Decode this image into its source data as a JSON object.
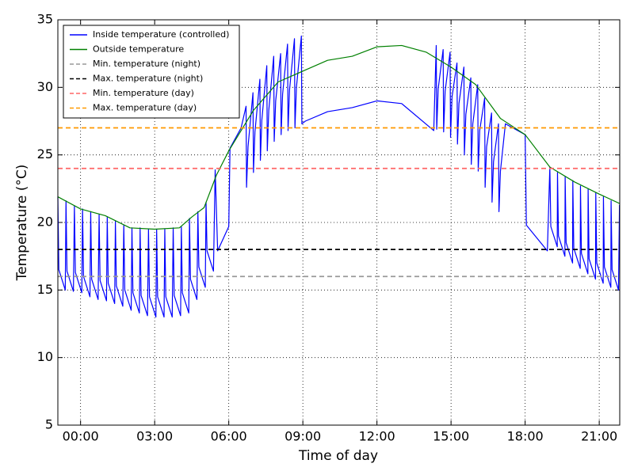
{
  "chart_data": {
    "type": "line",
    "xlabel": "Time of day",
    "ylabel": "Temperature (°C)",
    "xlim": [
      -0.92,
      21.83
    ],
    "ylim": [
      5,
      35
    ],
    "xticks": [
      {
        "value": 0,
        "label": "00:00"
      },
      {
        "value": 3,
        "label": "03:00"
      },
      {
        "value": 6,
        "label": "06:00"
      },
      {
        "value": 9,
        "label": "09:00"
      },
      {
        "value": 12,
        "label": "12:00"
      },
      {
        "value": 15,
        "label": "15:00"
      },
      {
        "value": 18,
        "label": "18:00"
      },
      {
        "value": 21,
        "label": "21:00"
      }
    ],
    "yticks": [
      5,
      10,
      15,
      20,
      25,
      30,
      35
    ],
    "grid": true,
    "legend": "upper left",
    "series": [
      {
        "name": "Inside temperature (controlled)",
        "color": "#0000ff",
        "linestyle": "solid",
        "x": [
          -0.92,
          -0.88,
          -0.62,
          -0.59,
          -0.55,
          -0.29,
          -0.25,
          -0.21,
          0.05,
          0.08,
          0.12,
          0.38,
          0.41,
          0.45,
          0.71,
          0.75,
          0.79,
          1.05,
          1.08,
          1.12,
          1.38,
          1.41,
          1.45,
          1.71,
          1.75,
          1.79,
          2.05,
          2.08,
          2.12,
          2.38,
          2.41,
          2.45,
          2.71,
          2.75,
          2.79,
          3.05,
          3.08,
          3.12,
          3.38,
          3.41,
          3.45,
          3.71,
          3.75,
          3.79,
          4.05,
          4.08,
          4.12,
          4.38,
          4.41,
          4.45,
          4.71,
          4.75,
          4.79,
          5.05,
          5.08,
          5.12,
          5.38,
          5.45,
          5.55,
          6.0,
          6.05,
          6.5,
          6.7,
          6.72,
          6.78,
          6.98,
          7.0,
          7.06,
          7.26,
          7.28,
          7.34,
          7.54,
          7.56,
          7.62,
          7.82,
          7.84,
          7.9,
          8.1,
          8.12,
          8.18,
          8.38,
          8.4,
          8.46,
          8.66,
          8.68,
          8.74,
          8.94,
          8.96,
          9.1,
          10,
          11,
          12,
          13,
          14.3,
          14.4,
          14.42,
          14.48,
          14.68,
          14.7,
          14.76,
          14.96,
          14.98,
          15.04,
          15.24,
          15.26,
          15.32,
          15.52,
          15.54,
          15.6,
          15.8,
          15.82,
          15.88,
          16.08,
          16.1,
          16.16,
          16.36,
          16.38,
          16.44,
          16.64,
          16.66,
          16.72,
          16.92,
          16.94,
          17.0,
          17.2,
          18.0,
          18.05,
          18.9,
          19.0,
          19.04,
          19.3,
          19.31,
          19.35,
          19.61,
          19.62,
          19.66,
          19.92,
          19.93,
          19.97,
          20.23,
          20.24,
          20.28,
          20.54,
          20.55,
          20.59,
          20.85,
          20.86,
          20.9,
          21.16,
          21.17,
          21.21,
          21.47,
          21.48,
          21.52,
          21.78,
          21.82
        ],
        "values": [
          21.9,
          16.5,
          15.0,
          21.6,
          16.4,
          14.9,
          21.2,
          16.3,
          14.8,
          21.0,
          16.0,
          14.5,
          20.8,
          15.8,
          14.3,
          20.6,
          15.7,
          14.2,
          20.4,
          15.5,
          14.0,
          20.1,
          15.3,
          13.8,
          19.8,
          15.0,
          13.5,
          19.6,
          14.8,
          13.3,
          19.6,
          14.6,
          13.1,
          19.5,
          14.5,
          13.0,
          19.5,
          14.5,
          13.0,
          19.5,
          14.5,
          13.0,
          19.6,
          14.6,
          13.1,
          19.7,
          14.8,
          13.3,
          20.3,
          15.8,
          14.3,
          20.8,
          16.7,
          15.2,
          21.5,
          17.9,
          16.4,
          23.9,
          17.9,
          19.7,
          25.5,
          27.0,
          28.6,
          22.6,
          25.6,
          29.6,
          23.7,
          26.7,
          30.6,
          24.6,
          27.6,
          31.6,
          25.3,
          28.3,
          32.3,
          26.0,
          29.0,
          32.5,
          26.5,
          29.5,
          33.2,
          26.8,
          29.8,
          33.6,
          27.0,
          30.0,
          33.8,
          27.3,
          27.5,
          28.2,
          28.5,
          29.0,
          28.8,
          26.8,
          33.1,
          26.9,
          29.9,
          32.8,
          26.7,
          29.7,
          32.6,
          26.3,
          29.3,
          31.8,
          25.8,
          28.8,
          31.5,
          25.0,
          28.0,
          30.7,
          24.3,
          27.3,
          30.2,
          23.8,
          26.8,
          29.2,
          22.6,
          25.6,
          28.1,
          21.5,
          24.5,
          27.3,
          20.8,
          23.8,
          27.3,
          26.5,
          19.8,
          17.9,
          24.1,
          19.7,
          18.2,
          23.7,
          19.0,
          17.5,
          23.4,
          18.5,
          17.0,
          23.1,
          18.1,
          16.6,
          22.7,
          17.7,
          16.2,
          22.5,
          17.3,
          15.8,
          22.2,
          17.0,
          15.5,
          21.9,
          16.7,
          15.2,
          21.6,
          16.5,
          15.0,
          21.3
        ]
      },
      {
        "name": "Outside temperature",
        "color": "#008000",
        "linestyle": "solid",
        "x": [
          -0.92,
          0,
          1,
          2,
          3,
          4,
          4.5,
          5,
          5.5,
          6,
          7,
          8,
          9,
          10,
          11,
          12,
          13,
          14,
          15,
          16,
          17,
          18,
          19,
          20,
          21,
          21.83
        ],
        "values": [
          21.9,
          21.0,
          20.5,
          19.6,
          19.5,
          19.6,
          20.4,
          21.1,
          23.5,
          25.3,
          28.3,
          30.4,
          31.2,
          32.0,
          32.3,
          33.0,
          33.1,
          32.6,
          31.5,
          30.2,
          27.7,
          26.5,
          24.1,
          23.0,
          22.1,
          21.4
        ]
      },
      {
        "name": "Min. temperature (night)",
        "color": "#999999",
        "linestyle": "dashed",
        "x": [
          -0.92,
          21.83
        ],
        "values": [
          16,
          16
        ]
      },
      {
        "name": "Max. temperature (night)",
        "color": "#000000",
        "linestyle": "dashed",
        "x": [
          -0.92,
          21.83
        ],
        "values": [
          18,
          18
        ]
      },
      {
        "name": "Min. temperature (day)",
        "color": "#ff6666",
        "linestyle": "dashed",
        "x": [
          -0.92,
          21.83
        ],
        "values": [
          24,
          24
        ]
      },
      {
        "name": "Max. temperature (day)",
        "color": "#ff9900",
        "linestyle": "dashed",
        "x": [
          -0.92,
          21.83
        ],
        "values": [
          27,
          27
        ]
      }
    ]
  }
}
